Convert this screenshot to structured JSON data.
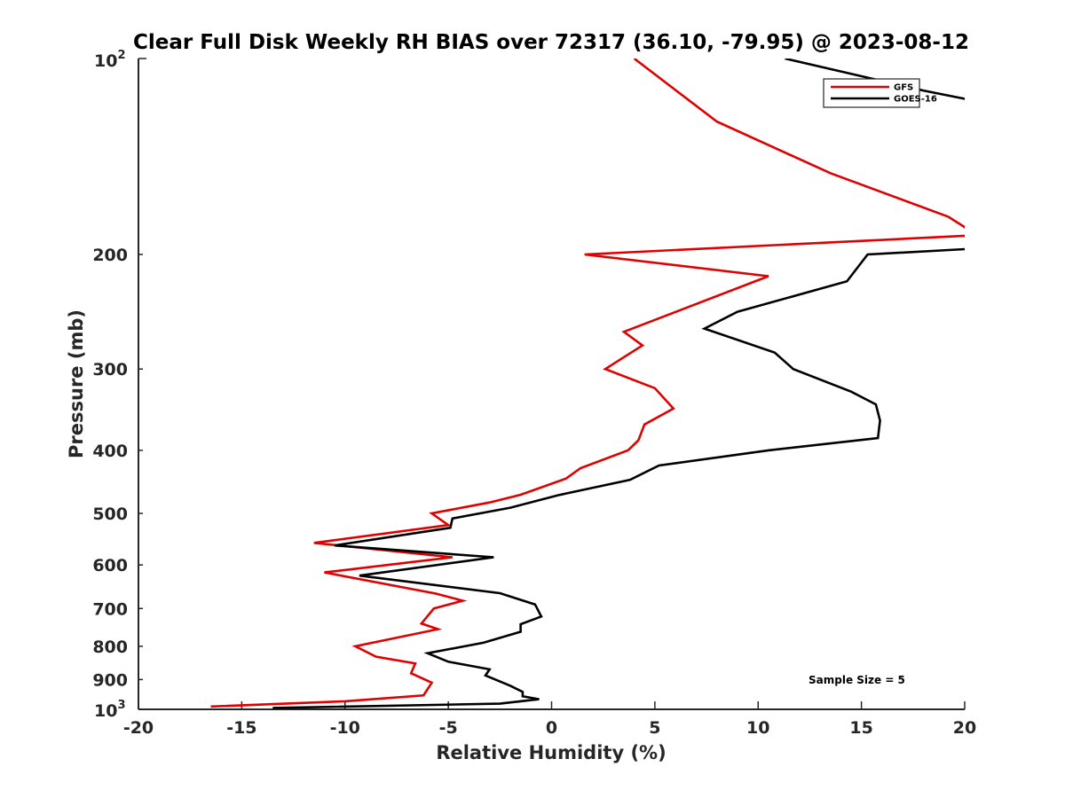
{
  "chart_data": {
    "type": "line",
    "title": "Clear Full Disk Weekly RH BIAS over 72317 (36.10, -79.95) @ 2023-08-12",
    "xlabel": "Relative Humidity (%)",
    "ylabel": "Pressure (mb)",
    "xlim": [
      -20,
      20
    ],
    "ylim": [
      100,
      1000
    ],
    "y_scale": "log",
    "y_reversed": true,
    "grid": false,
    "legend_position": "top-right",
    "x_ticks": [
      -20,
      -15,
      -10,
      -5,
      0,
      5,
      10,
      15,
      20
    ],
    "x_tick_labels": [
      "-20",
      "-15",
      "-10",
      "-5",
      "0",
      "5",
      "10",
      "15",
      "20"
    ],
    "y_ticks": [
      200,
      300,
      400,
      500,
      600,
      700,
      800,
      900
    ],
    "y_tick_labels": [
      "200",
      "300",
      "400",
      "500",
      "600",
      "700",
      "800",
      "900"
    ],
    "y_limit_labels": {
      "top_base": "10",
      "top_exp": "2",
      "bottom_base": "10",
      "bottom_exp": "3"
    },
    "series": [
      {
        "name": "GFS",
        "color": "#e00000",
        "points": [
          [
            4.0,
            100
          ],
          [
            8.0,
            125
          ],
          [
            13.5,
            150
          ],
          [
            19.2,
            175
          ],
          [
            20.4,
            185
          ],
          [
            20.4,
            187
          ],
          [
            1.6,
            200
          ],
          [
            10.5,
            216
          ],
          [
            3.5,
            263
          ],
          [
            4.4,
            276
          ],
          [
            2.6,
            300
          ],
          [
            5.0,
            321
          ],
          [
            5.9,
            345
          ],
          [
            4.5,
            365
          ],
          [
            4.2,
            386
          ],
          [
            3.7,
            400
          ],
          [
            1.4,
            426
          ],
          [
            0.7,
            442
          ],
          [
            -1.5,
            468
          ],
          [
            -3.0,
            481
          ],
          [
            -5.8,
            500
          ],
          [
            -5.0,
            521
          ],
          [
            -11.5,
            555
          ],
          [
            -4.8,
            584
          ],
          [
            -11.0,
            616
          ],
          [
            -5.6,
            664
          ],
          [
            -4.3,
            681
          ],
          [
            -5.7,
            700
          ],
          [
            -6.3,
            738
          ],
          [
            -5.5,
            753
          ],
          [
            -9.5,
            800
          ],
          [
            -8.5,
            830
          ],
          [
            -6.6,
            850
          ],
          [
            -6.8,
            880
          ],
          [
            -5.8,
            910
          ],
          [
            -6.2,
            952
          ],
          [
            -10.0,
            972
          ],
          [
            -16.5,
            990
          ]
        ]
      },
      {
        "name": "GOES-16",
        "color": "#000000",
        "points": [
          [
            11.3,
            100
          ],
          [
            18.0,
            112
          ],
          [
            20.4,
            116
          ],
          [
            20.4,
            196
          ],
          [
            15.3,
            200
          ],
          [
            14.3,
            220
          ],
          [
            9.0,
            245
          ],
          [
            7.4,
            260
          ],
          [
            10.8,
            283
          ],
          [
            11.7,
            300
          ],
          [
            14.5,
            325
          ],
          [
            15.7,
            340
          ],
          [
            15.9,
            360
          ],
          [
            15.8,
            383
          ],
          [
            10.5,
            400
          ],
          [
            5.2,
            422
          ],
          [
            3.8,
            444
          ],
          [
            0.3,
            469
          ],
          [
            -2.0,
            490
          ],
          [
            -4.8,
            509
          ],
          [
            -4.9,
            526
          ],
          [
            -10.5,
            560
          ],
          [
            -2.8,
            584
          ],
          [
            -9.3,
            623
          ],
          [
            -2.5,
            663
          ],
          [
            -0.8,
            690
          ],
          [
            -0.5,
            720
          ],
          [
            -1.5,
            740
          ],
          [
            -1.5,
            760
          ],
          [
            -3.3,
            790
          ],
          [
            -6.0,
            820
          ],
          [
            -5.0,
            845
          ],
          [
            -3.0,
            868
          ],
          [
            -3.2,
            887
          ],
          [
            -2.0,
            920
          ],
          [
            -1.4,
            940
          ],
          [
            -1.4,
            955
          ],
          [
            -0.6,
            965
          ],
          [
            -2.5,
            980
          ],
          [
            -13.5,
            995
          ]
        ]
      }
    ],
    "annotations": [
      "Sample Size = 5"
    ]
  }
}
